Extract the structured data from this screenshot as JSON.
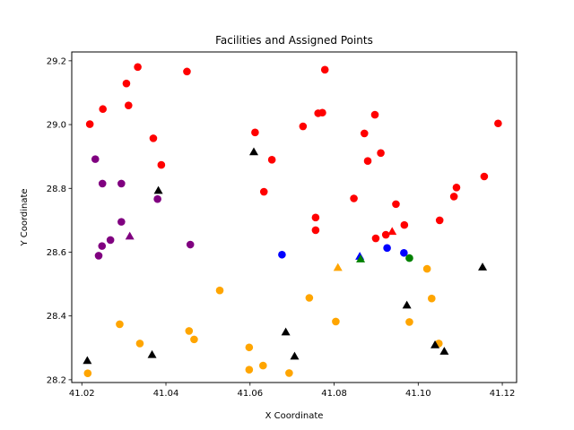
{
  "chart_data": {
    "type": "scatter",
    "title": "Facilities and Assigned Points",
    "xlabel": "X Coordinate",
    "ylabel": "Y Coordinate",
    "xlim": [
      41.0176,
      41.1234
    ],
    "ylim": [
      28.1913,
      29.2277
    ],
    "xticks": [
      41.02,
      41.04,
      41.06,
      41.08,
      41.1,
      41.12
    ],
    "xtick_labels": [
      "41.02",
      "41.04",
      "41.06",
      "41.08",
      "41.10",
      "41.12"
    ],
    "yticks": [
      28.2,
      28.4,
      28.6,
      28.8,
      29.0,
      29.2
    ],
    "ytick_labels": [
      "28.2",
      "28.4",
      "28.6",
      "28.8",
      "29.0",
      "29.2"
    ],
    "grid": false,
    "legend": false,
    "series": [
      {
        "color": "#ff0000",
        "marker": "circle",
        "points": [
          [
            41.0219,
            29.0014
          ],
          [
            41.025,
            29.0487
          ],
          [
            41.0306,
            29.1289
          ],
          [
            41.0311,
            29.0601
          ],
          [
            41.0333,
            29.1805
          ],
          [
            41.037,
            28.957
          ],
          [
            41.0389,
            28.8736
          ],
          [
            41.045,
            29.1663
          ],
          [
            41.0612,
            28.9754
          ],
          [
            41.0633,
            28.7894
          ],
          [
            41.0652,
            28.8897
          ],
          [
            41.0726,
            28.9945
          ],
          [
            41.0756,
            28.7086
          ],
          [
            41.0756,
            28.6689
          ],
          [
            41.0762,
            29.0356
          ],
          [
            41.0772,
            29.0374
          ],
          [
            41.0778,
            29.1721
          ],
          [
            41.0847,
            28.7685
          ],
          [
            41.0872,
            28.9724
          ],
          [
            41.088,
            28.8859
          ],
          [
            41.0897,
            29.0309
          ],
          [
            41.0899,
            28.6434
          ],
          [
            41.0911,
            28.9109
          ],
          [
            41.0923,
            28.6546
          ],
          [
            41.0947,
            28.7506
          ],
          [
            41.0967,
            28.6853
          ],
          [
            41.1051,
            28.6999
          ],
          [
            41.1085,
            28.7743
          ],
          [
            41.1091,
            28.8028
          ],
          [
            41.1157,
            28.8373
          ],
          [
            41.119,
            29.0037
          ]
        ]
      },
      {
        "color": "#800080",
        "marker": "circle",
        "points": [
          [
            41.0232,
            28.8917
          ],
          [
            41.024,
            28.5888
          ],
          [
            41.0248,
            28.6193
          ],
          [
            41.0249,
            28.8151
          ],
          [
            41.0268,
            28.638
          ],
          [
            41.0294,
            28.8151
          ],
          [
            41.0294,
            28.6951
          ],
          [
            41.038,
            28.7666
          ],
          [
            41.0458,
            28.6238
          ]
        ]
      },
      {
        "color": "#0000ff",
        "marker": "circle",
        "points": [
          [
            41.0676,
            28.5922
          ],
          [
            41.0926,
            28.6131
          ],
          [
            41.0966,
            28.5978
          ]
        ]
      },
      {
        "color": "#008000",
        "marker": "circle",
        "points": [
          [
            41.0979,
            28.5814
          ]
        ]
      },
      {
        "color": "#ffa500",
        "marker": "circle",
        "points": [
          [
            41.0214,
            28.2203
          ],
          [
            41.029,
            28.374
          ],
          [
            41.0338,
            28.3136
          ],
          [
            41.0455,
            28.353
          ],
          [
            41.0467,
            28.3265
          ],
          [
            41.0528,
            28.4801
          ],
          [
            41.0598,
            28.3015
          ],
          [
            41.0598,
            28.2316
          ],
          [
            41.0631,
            28.2444
          ],
          [
            41.0693,
            28.221
          ],
          [
            41.0741,
            28.4567
          ],
          [
            41.0804,
            28.3824
          ],
          [
            41.0979,
            28.381
          ],
          [
            41.1021,
            28.5478
          ],
          [
            41.1032,
            28.4547
          ],
          [
            41.1049,
            28.3136
          ]
        ]
      },
      {
        "color": "#000000",
        "marker": "triangle",
        "points": [
          [
            41.0213,
            28.26
          ],
          [
            41.0367,
            28.2788
          ],
          [
            41.0382,
            28.7935
          ],
          [
            41.0609,
            28.9146
          ],
          [
            41.0685,
            28.3497
          ],
          [
            41.0706,
            28.2739
          ],
          [
            41.0973,
            28.4339
          ],
          [
            41.104,
            28.3094
          ],
          [
            41.1062,
            28.2893
          ],
          [
            41.1153,
            28.5533
          ]
        ]
      },
      {
        "color": "#800080",
        "marker": "triangle",
        "points": [
          [
            41.0314,
            28.6502
          ]
        ]
      },
      {
        "color": "#ffa500",
        "marker": "triangle",
        "points": [
          [
            41.0809,
            28.5519
          ]
        ]
      },
      {
        "color": "#0000ff",
        "marker": "triangle",
        "points": [
          [
            41.0861,
            28.5871
          ]
        ]
      },
      {
        "color": "#008000",
        "marker": "triangle",
        "points": [
          [
            41.0863,
            28.5786
          ]
        ]
      },
      {
        "color": "#ff0000",
        "marker": "triangle",
        "points": [
          [
            41.0938,
            28.6648
          ]
        ]
      }
    ]
  }
}
